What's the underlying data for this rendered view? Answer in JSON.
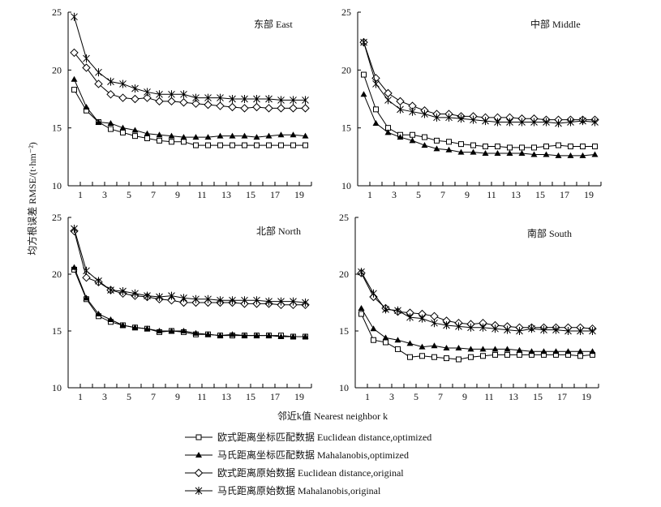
{
  "chart_data": {
    "type": "line",
    "ylabel": "均方根误差 RMSE/(t·hm⁻²)",
    "xlabel": "邻近k值 Nearest neighbor k",
    "ylim": [
      10,
      25
    ],
    "yticks": [
      10,
      15,
      20,
      25
    ],
    "x": [
      1,
      2,
      3,
      4,
      5,
      6,
      7,
      8,
      9,
      10,
      11,
      12,
      13,
      14,
      15,
      16,
      17,
      18,
      19,
      20
    ],
    "xtick_labels": [
      "1",
      "3",
      "5",
      "7",
      "9",
      "11",
      "13",
      "15",
      "17",
      "19"
    ],
    "legend": [
      {
        "key": "euc_opt",
        "marker": "square",
        "label": "欧式距离坐标匹配数据  Euclidean distance,optimized"
      },
      {
        "key": "mah_opt",
        "marker": "triangle",
        "label": "马氏距离坐标匹配数据  Mahalanobis,optimized"
      },
      {
        "key": "euc_orig",
        "marker": "diamond",
        "label": "欧式距离原始数据  Euclidean distance,original"
      },
      {
        "key": "mah_orig",
        "marker": "star",
        "label": "马氏距离原始数据  Mahalanobis,original"
      }
    ],
    "panels": [
      {
        "title": "东部 East",
        "series": {
          "euc_opt": [
            18.3,
            16.5,
            15.5,
            14.9,
            14.6,
            14.3,
            14.1,
            13.9,
            13.8,
            13.8,
            13.5,
            13.5,
            13.5,
            13.5,
            13.5,
            13.5,
            13.5,
            13.5,
            13.5,
            13.5
          ],
          "mah_opt": [
            19.2,
            16.8,
            15.5,
            15.4,
            15.0,
            14.8,
            14.5,
            14.4,
            14.3,
            14.2,
            14.2,
            14.2,
            14.3,
            14.3,
            14.3,
            14.2,
            14.3,
            14.4,
            14.4,
            14.3
          ],
          "euc_orig": [
            21.5,
            20.2,
            18.8,
            17.9,
            17.6,
            17.5,
            17.6,
            17.3,
            17.3,
            17.2,
            17.1,
            17.0,
            16.9,
            16.8,
            16.7,
            16.8,
            16.7,
            16.7,
            16.7,
            16.7
          ],
          "mah_orig": [
            24.6,
            21.0,
            19.8,
            19.0,
            18.8,
            18.4,
            18.1,
            17.9,
            17.9,
            17.9,
            17.6,
            17.6,
            17.6,
            17.5,
            17.5,
            17.5,
            17.5,
            17.4,
            17.4,
            17.4
          ]
        }
      },
      {
        "title": "中部 Middle",
        "series": {
          "euc_opt": [
            19.6,
            16.6,
            15.0,
            14.4,
            14.4,
            14.2,
            13.9,
            13.8,
            13.6,
            13.5,
            13.4,
            13.4,
            13.3,
            13.3,
            13.3,
            13.4,
            13.5,
            13.4,
            13.4,
            13.4
          ],
          "mah_opt": [
            17.9,
            15.4,
            14.6,
            14.2,
            13.9,
            13.5,
            13.2,
            13.1,
            12.9,
            12.9,
            12.8,
            12.8,
            12.8,
            12.8,
            12.7,
            12.7,
            12.6,
            12.6,
            12.6,
            12.7
          ],
          "euc_orig": [
            22.4,
            19.3,
            18.0,
            17.3,
            16.9,
            16.5,
            16.2,
            16.2,
            16.0,
            16.0,
            15.9,
            15.9,
            15.9,
            15.8,
            15.8,
            15.7,
            15.7,
            15.7,
            15.7,
            15.7
          ],
          "mah_orig": [
            22.4,
            18.8,
            17.4,
            16.6,
            16.4,
            16.2,
            15.9,
            15.9,
            15.8,
            15.7,
            15.6,
            15.5,
            15.5,
            15.5,
            15.5,
            15.5,
            15.4,
            15.5,
            15.6,
            15.5
          ]
        }
      },
      {
        "title": "北部 North",
        "series": {
          "euc_opt": [
            20.4,
            17.8,
            16.3,
            15.8,
            15.5,
            15.3,
            15.2,
            14.9,
            15.0,
            14.9,
            14.7,
            14.7,
            14.6,
            14.6,
            14.6,
            14.6,
            14.6,
            14.6,
            14.5,
            14.5
          ],
          "mah_opt": [
            20.6,
            17.9,
            16.5,
            16.0,
            15.5,
            15.3,
            15.2,
            15.0,
            15.0,
            15.0,
            14.8,
            14.7,
            14.6,
            14.7,
            14.6,
            14.6,
            14.6,
            14.5,
            14.5,
            14.5
          ],
          "euc_orig": [
            23.8,
            19.7,
            19.3,
            18.6,
            18.3,
            18.1,
            18.0,
            17.8,
            17.7,
            17.5,
            17.5,
            17.5,
            17.5,
            17.5,
            17.4,
            17.4,
            17.4,
            17.3,
            17.3,
            17.3
          ],
          "mah_orig": [
            24.0,
            20.3,
            19.4,
            18.6,
            18.5,
            18.3,
            18.1,
            18.0,
            18.1,
            17.9,
            17.8,
            17.8,
            17.7,
            17.7,
            17.7,
            17.7,
            17.6,
            17.6,
            17.6,
            17.5
          ]
        }
      },
      {
        "title": "南部 South",
        "series": {
          "euc_opt": [
            16.5,
            14.2,
            14.0,
            13.4,
            12.7,
            12.8,
            12.7,
            12.6,
            12.5,
            12.7,
            12.8,
            12.9,
            12.9,
            12.9,
            12.9,
            12.9,
            12.9,
            12.9,
            12.8,
            12.9
          ],
          "mah_opt": [
            17.0,
            15.2,
            14.4,
            14.2,
            13.9,
            13.6,
            13.7,
            13.5,
            13.5,
            13.4,
            13.4,
            13.4,
            13.4,
            13.3,
            13.2,
            13.2,
            13.2,
            13.2,
            13.2,
            13.2
          ],
          "euc_orig": [
            20.1,
            18.0,
            17.0,
            16.7,
            16.6,
            16.5,
            16.3,
            15.9,
            15.7,
            15.6,
            15.7,
            15.5,
            15.4,
            15.3,
            15.3,
            15.3,
            15.3,
            15.3,
            15.3,
            15.2
          ],
          "mah_orig": [
            20.2,
            18.3,
            16.9,
            16.8,
            16.2,
            16.1,
            15.7,
            15.5,
            15.4,
            15.3,
            15.3,
            15.2,
            15.1,
            15.0,
            15.2,
            15.1,
            15.1,
            15.0,
            15.0,
            15.0
          ]
        }
      }
    ]
  }
}
